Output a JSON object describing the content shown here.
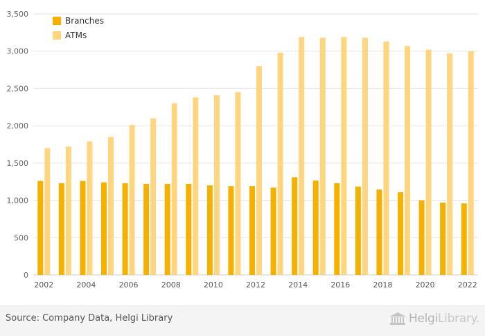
{
  "chart_data": {
    "type": "bar",
    "title": "",
    "xlabel": "",
    "ylabel": "",
    "ylim": [
      0,
      3500
    ],
    "yticks": [
      "0",
      "500",
      "1,000",
      "1,500",
      "2,000",
      "2,500",
      "3,000",
      "3,500"
    ],
    "ytick_values": [
      0,
      500,
      1000,
      1500,
      2000,
      2500,
      3000,
      3500
    ],
    "categories": [
      "2002",
      "2003",
      "2004",
      "2005",
      "2006",
      "2007",
      "2008",
      "2009",
      "2010",
      "2011",
      "2012",
      "2013",
      "2014",
      "2015",
      "2016",
      "2017",
      "2018",
      "2019",
      "2020",
      "2021",
      "2022"
    ],
    "xtick_labels": [
      "2002",
      "",
      "2004",
      "",
      "2006",
      "",
      "2008",
      "",
      "2010",
      "",
      "2012",
      "",
      "2014",
      "",
      "2016",
      "",
      "2018",
      "",
      "2020",
      "",
      "2022"
    ],
    "grid": true,
    "legend_position": "top-left",
    "series": [
      {
        "name": "Branches",
        "color": "#F5B000",
        "values": [
          1260,
          1230,
          1260,
          1240,
          1230,
          1220,
          1220,
          1220,
          1200,
          1190,
          1190,
          1170,
          1310,
          1265,
          1230,
          1185,
          1145,
          1110,
          1000,
          970,
          960
        ]
      },
      {
        "name": "ATMs",
        "color": "#FFD580",
        "values": [
          1700,
          1720,
          1790,
          1850,
          2010,
          2100,
          2300,
          2380,
          2410,
          2450,
          2800,
          2980,
          3190,
          3180,
          3190,
          3180,
          3130,
          3070,
          3020,
          2970,
          3000
        ]
      }
    ]
  },
  "footer": {
    "source": "Source: Company Data, Helgi Library",
    "brand_primary": "Helgi",
    "brand_secondary": "Library."
  }
}
